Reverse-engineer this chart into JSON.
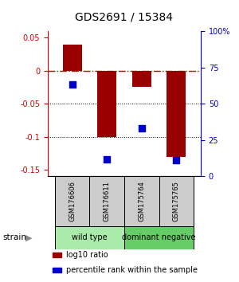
{
  "title": "GDS2691 / 15384",
  "samples": [
    "GSM176606",
    "GSM176611",
    "GSM175764",
    "GSM175765"
  ],
  "log10_ratio": [
    0.04,
    -0.1,
    -0.025,
    -0.13
  ],
  "percentile_rank": [
    63,
    12,
    33,
    11
  ],
  "bar_color": "#990000",
  "dot_color": "#0000cc",
  "left_yticks": [
    0.05,
    0.0,
    -0.05,
    -0.1,
    -0.15
  ],
  "left_yticklabels": [
    "0.05",
    "0",
    "-0.05",
    "-0.1",
    "-0.15"
  ],
  "right_yticks_pct": [
    100,
    75,
    50,
    25,
    0
  ],
  "right_ytick_labels": [
    "100%",
    "75",
    "50",
    "25",
    "0"
  ],
  "right_ylabel_color": "#0000cc",
  "left_ylabel_color": "#cc0000",
  "hline0_color": "#cc0000",
  "hline0_style": "dashdot",
  "hline_dotted_color": "#000000",
  "groups": [
    {
      "label": "wild type",
      "samples": [
        0,
        1
      ],
      "color": "#aaeaaa"
    },
    {
      "label": "dominant negative",
      "samples": [
        2,
        3
      ],
      "color": "#66cc66"
    }
  ],
  "legend": [
    {
      "color": "#990000",
      "label": "log10 ratio"
    },
    {
      "color": "#0000cc",
      "label": "percentile rank within the sample"
    }
  ],
  "strain_label": "strain",
  "ylim": [
    -0.16,
    0.06
  ],
  "bar_width": 0.55,
  "dot_size": 40,
  "sample_box_color": "#cccccc",
  "bg_color": "#ffffff"
}
